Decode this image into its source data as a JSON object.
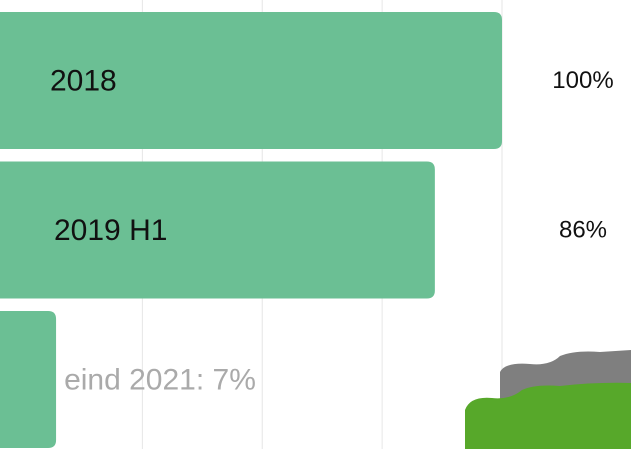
{
  "chart_data": {
    "type": "barh",
    "categories": [
      "2018",
      "2019 H1",
      "eind 2021: 7%"
    ],
    "values": [
      100,
      86,
      7
    ],
    "value_labels": [
      "100%",
      "86%",
      null
    ],
    "color": "#6bbf94",
    "xlim": [
      0,
      100
    ],
    "xticks": [
      25,
      50,
      75,
      100
    ],
    "grid": true
  }
}
